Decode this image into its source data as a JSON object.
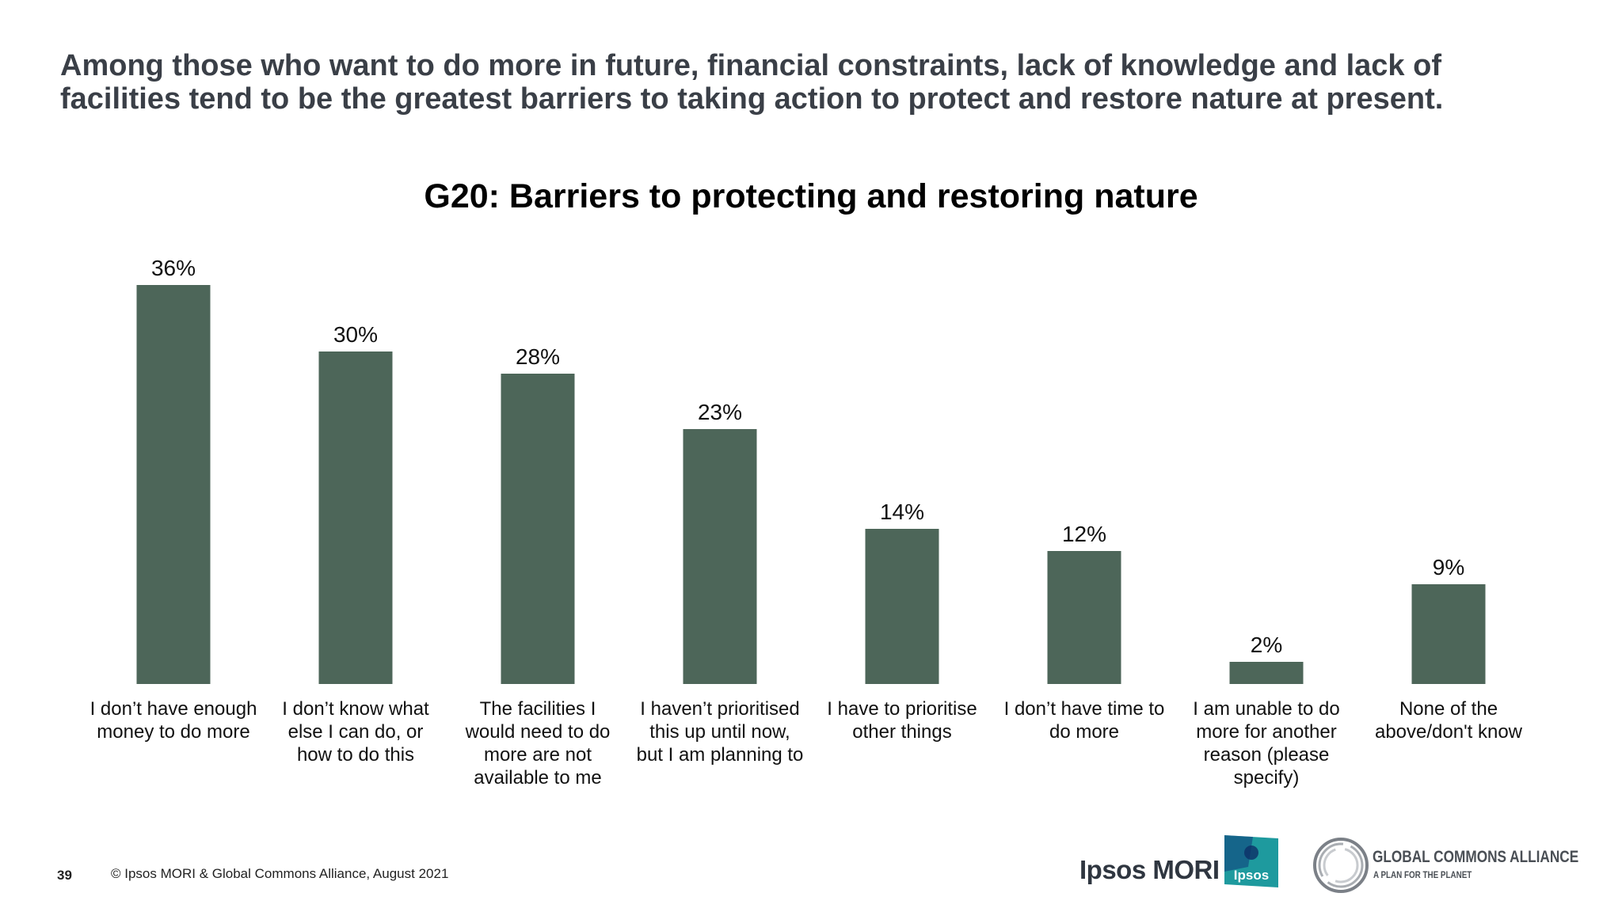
{
  "headline": {
    "line1": "Among those who want to do more in future, financial constraints, lack of knowledge and lack of",
    "line2": "facilities tend to be the greatest barriers to taking action to protect and restore nature at present."
  },
  "chart_data": {
    "type": "bar",
    "title": "G20: Barriers to protecting and restoring nature",
    "xlabel": "",
    "ylabel": "",
    "ylim": [
      0,
      40
    ],
    "grid": false,
    "legend": "none",
    "bar_color": "#4d6659",
    "categories": [
      [
        "I don’t have enough",
        "money to do more"
      ],
      [
        "I don’t know what",
        "else I can do, or",
        "how to do this"
      ],
      [
        "The facilities I",
        "would need to do",
        "more are not",
        "available to me"
      ],
      [
        "I haven’t prioritised",
        "this up until now,",
        "but I am planning to"
      ],
      [
        "I have to prioritise",
        "other things"
      ],
      [
        "I don’t have time to",
        "do more"
      ],
      [
        "I am unable to do",
        "more for another",
        "reason (please",
        "specify)"
      ],
      [
        "None of the",
        "above/don't know"
      ]
    ],
    "values": [
      36,
      30,
      28,
      23,
      14,
      12,
      2,
      9
    ],
    "data_labels": [
      "36%",
      "30%",
      "28%",
      "23%",
      "14%",
      "12%",
      "2%",
      "9%"
    ]
  },
  "footer": {
    "page_number": "39",
    "copyright": "© Ipsos MORI & Global Commons Alliance, August 2021"
  },
  "logos": {
    "ipsos_mori": "Ipsos MORI",
    "ipsos_badge": "Ipsos",
    "gca_title": "GLOBAL COMMONS ALLIANCE",
    "gca_tagline": "A PLAN FOR THE PLANET",
    "ipsos_badge_color": "#1e9a9e",
    "ipsos_badge_dark": "#0e3a7a"
  }
}
